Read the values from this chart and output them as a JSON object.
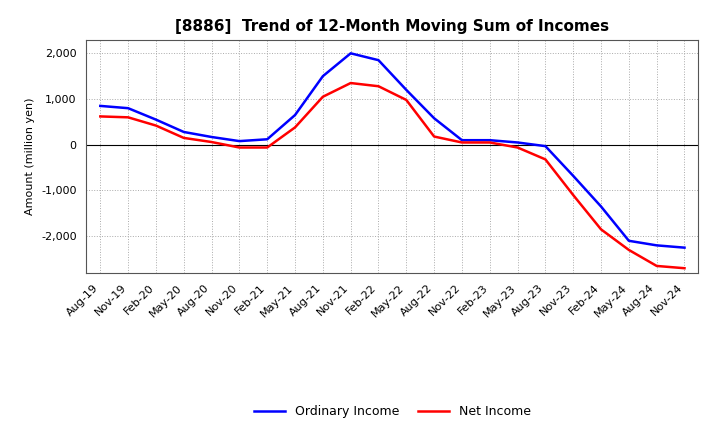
{
  "title": "[8886]  Trend of 12-Month Moving Sum of Incomes",
  "ylabel": "Amount (million yen)",
  "x_labels": [
    "Aug-19",
    "Nov-19",
    "Feb-20",
    "May-20",
    "Aug-20",
    "Nov-20",
    "Feb-21",
    "May-21",
    "Aug-21",
    "Nov-21",
    "Feb-22",
    "May-22",
    "Aug-22",
    "Nov-22",
    "Feb-23",
    "May-23",
    "Aug-23",
    "Nov-23",
    "Feb-24",
    "May-24",
    "Aug-24",
    "Nov-24"
  ],
  "ordinary_income": [
    850,
    800,
    550,
    280,
    170,
    80,
    120,
    650,
    1500,
    2000,
    1850,
    1200,
    580,
    100,
    100,
    50,
    -30,
    -680,
    -1350,
    -2100,
    -2200,
    -2250
  ],
  "net_income": [
    620,
    600,
    420,
    150,
    60,
    -60,
    -60,
    380,
    1050,
    1350,
    1280,
    980,
    180,
    50,
    50,
    -60,
    -320,
    -1100,
    -1850,
    -2300,
    -2650,
    -2700
  ],
  "ordinary_color": "#0000ff",
  "net_color": "#ff0000",
  "background_color": "#ffffff",
  "grid_color": "#aaaaaa",
  "ylim": [
    -2800,
    2300
  ],
  "yticks": [
    -2000,
    -1000,
    0,
    1000,
    2000
  ],
  "legend_ordinary": "Ordinary Income",
  "legend_net": "Net Income",
  "line_width": 1.8,
  "title_fontsize": 11,
  "axis_fontsize": 8,
  "ylabel_fontsize": 8
}
